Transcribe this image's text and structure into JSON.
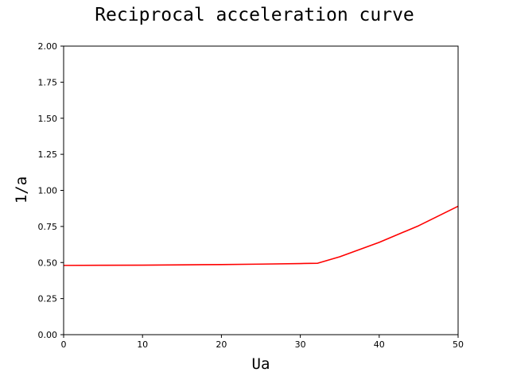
{
  "chart_data": {
    "type": "line",
    "title": "Reciprocal acceleration curve",
    "xlabel": "Ua",
    "ylabel": "1/a",
    "xlim": [
      0,
      50
    ],
    "ylim": [
      0,
      2
    ],
    "grid": false,
    "x_ticks": [
      0,
      10,
      20,
      30,
      40,
      50
    ],
    "x_tick_labels": [
      "0",
      "10",
      "20",
      "30",
      "40",
      "50"
    ],
    "y_ticks": [
      0,
      0.25,
      0.5,
      0.75,
      1.0,
      1.25,
      1.5,
      1.75,
      2.0
    ],
    "y_tick_labels": [
      "0.00",
      "0.25",
      "0.50",
      "0.75",
      "1.00",
      "1.25",
      "1.50",
      "1.75",
      "2.00"
    ],
    "series": [
      {
        "color": "#ff0000",
        "x": [
          0,
          5,
          10,
          15,
          20,
          25,
          30,
          32.2,
          35,
          40,
          45,
          50
        ],
        "y": [
          0.48,
          0.481,
          0.482,
          0.484,
          0.486,
          0.489,
          0.493,
          0.495,
          0.54,
          0.64,
          0.755,
          0.89
        ]
      }
    ]
  }
}
